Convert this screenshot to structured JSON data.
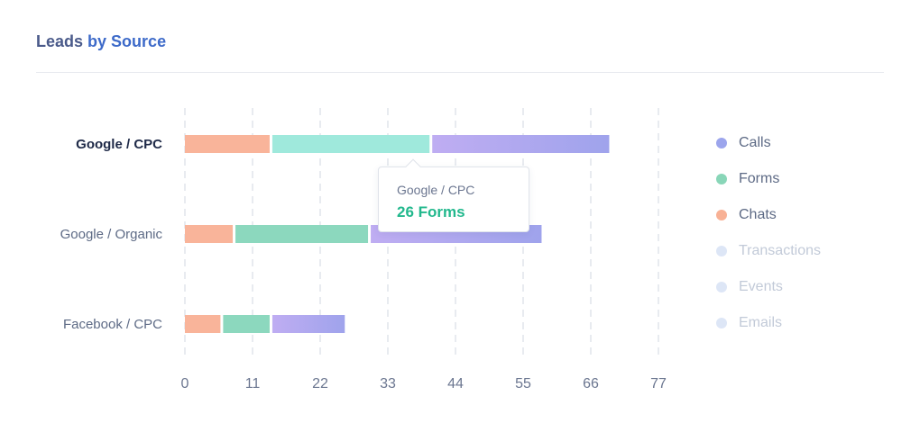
{
  "title": {
    "part1": "Leads",
    "part2": "by Source"
  },
  "chart_data": {
    "type": "bar",
    "orientation": "horizontal",
    "stacked": true,
    "title": "Leads by Source",
    "categories": [
      "Google / CPC",
      "Google / Organic",
      "Facebook / CPC"
    ],
    "active_category": "Google / CPC",
    "series": [
      {
        "name": "Chats",
        "color": "#f9b49a",
        "values": [
          14,
          8,
          6
        ]
      },
      {
        "name": "Forms",
        "color": "#8cd8be",
        "highlight_color": "#9fe9dc",
        "values": [
          26,
          22,
          8
        ]
      },
      {
        "name": "Calls",
        "gradient": [
          "#bfadf2",
          "#9fa3ec"
        ],
        "values": [
          29,
          28,
          12
        ]
      }
    ],
    "xticks": [
      0,
      11,
      22,
      33,
      44,
      55,
      66,
      77
    ],
    "xlim": [
      0,
      77
    ],
    "grid": "vertical dashed",
    "legend_position": "right"
  },
  "legend": [
    {
      "label": "Calls",
      "color": "#9ca5ec",
      "active": true
    },
    {
      "label": "Forms",
      "color": "#89d6b8",
      "active": true
    },
    {
      "label": "Chats",
      "color": "#f8b195",
      "active": true
    },
    {
      "label": "Transactions",
      "color": "#dde6f6",
      "active": false
    },
    {
      "label": "Events",
      "color": "#dde6f6",
      "active": false
    },
    {
      "label": "Emails",
      "color": "#dde6f6",
      "active": false
    }
  ],
  "tooltip": {
    "category": "Google / CPC",
    "value_text": "26 Forms"
  }
}
